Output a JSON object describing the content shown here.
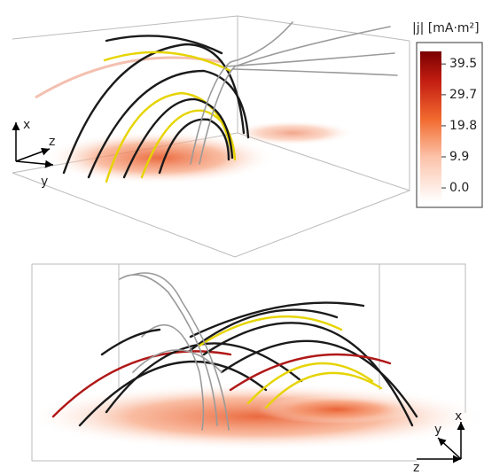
{
  "panels": [
    {
      "axes": [
        "x",
        "z",
        "y"
      ]
    },
    {
      "axes": [
        "x",
        "y",
        "z"
      ]
    }
  ],
  "colorbar": {
    "title": "|j| [mA·m²]",
    "lim": [
      -4.5,
      43.5
    ],
    "ticks": [
      {
        "value": 0,
        "label": "0.0"
      },
      9.9,
      19.8,
      29.7,
      39.5
    ]
  }
}
